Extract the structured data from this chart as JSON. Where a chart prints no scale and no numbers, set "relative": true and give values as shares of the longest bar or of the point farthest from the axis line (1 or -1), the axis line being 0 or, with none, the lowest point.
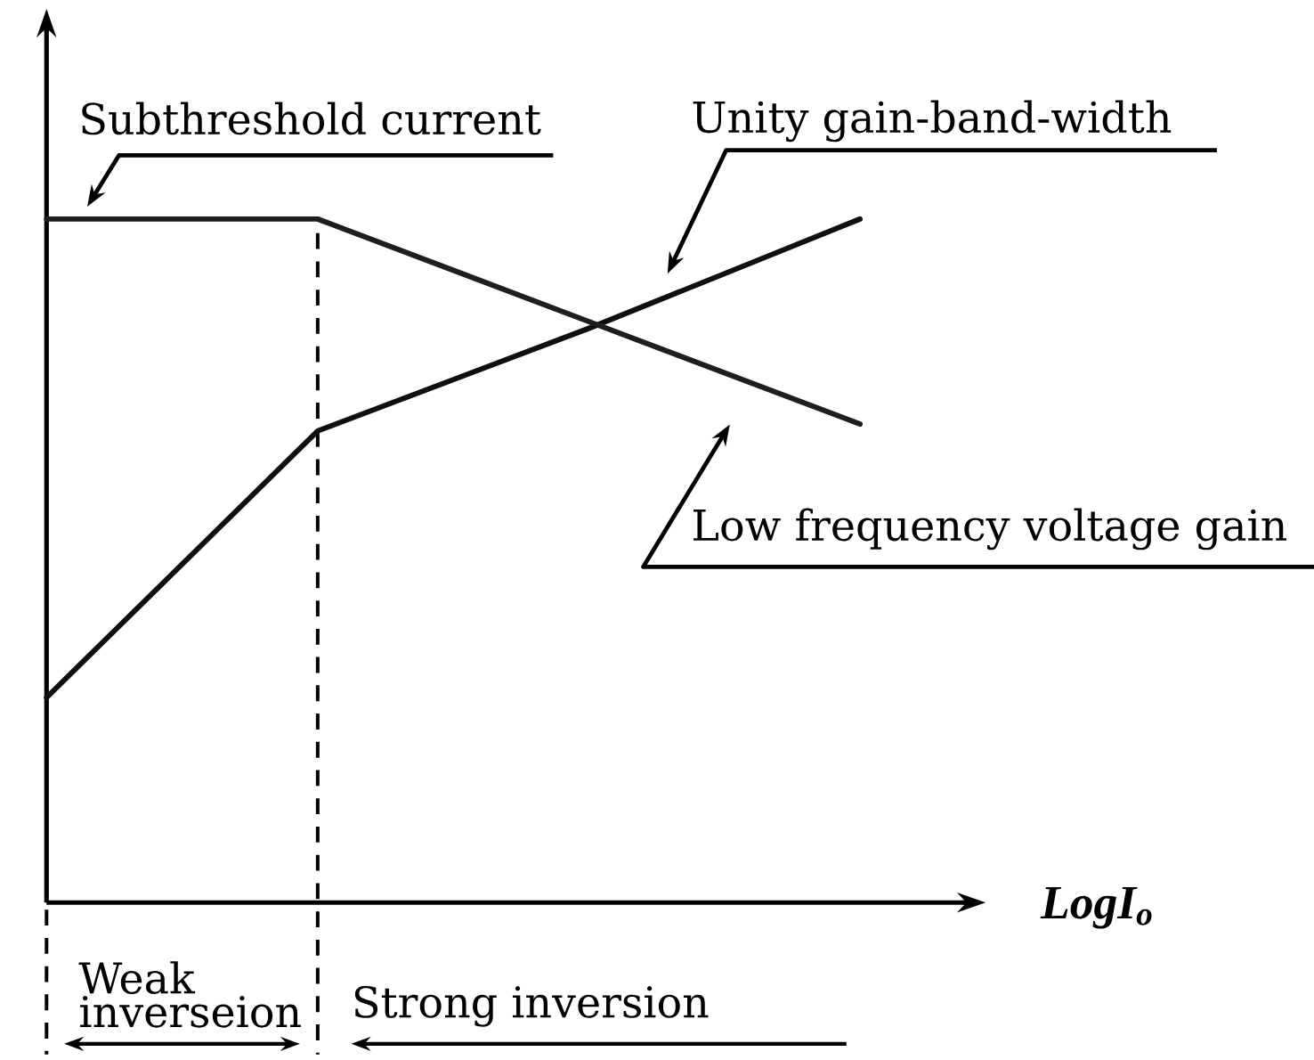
{
  "chart_data": {
    "type": "line",
    "relative": true,
    "xlabel": "LogI$_{o}$",
    "categories": [
      null,
      null,
      null,
      null
    ],
    "series": [
      {
        "name": "Unity gain-band-width",
        "color": "#0f0f0f",
        "values": [
          0.3,
          0.69,
          0.84,
          1
        ]
      },
      {
        "name": "Low frequency voltage gain",
        "color": "#1e1e1e",
        "values": [
          1,
          1,
          0.85,
          0.7
        ]
      }
    ],
    "annotations": [
      "Subthreshold current",
      "Weak inverseion",
      "Strong inversion"
    ],
    "marker": "none",
    "line_style": "solid"
  }
}
